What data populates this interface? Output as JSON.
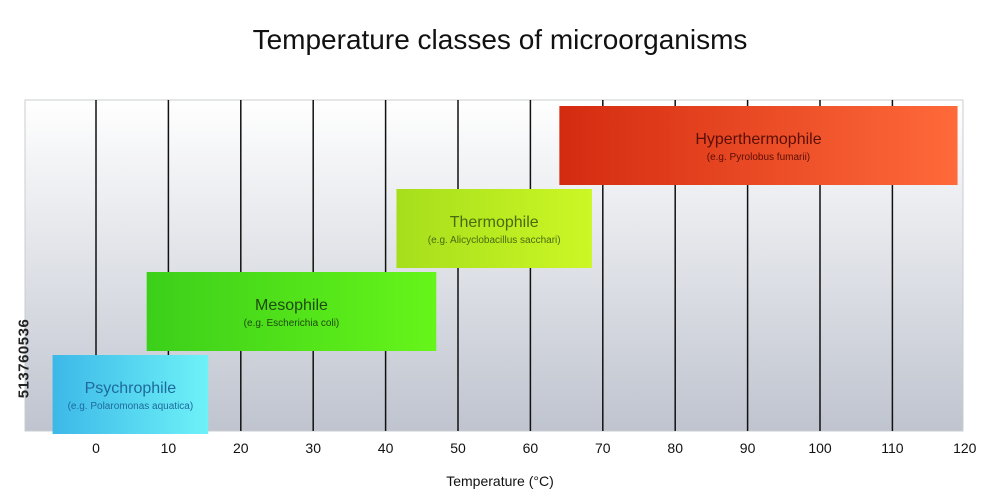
{
  "chart_data": {
    "type": "range-bar",
    "title": "Temperature classes of microorganisms",
    "xlabel": "Temperature (°C)",
    "xlim": [
      -10,
      120
    ],
    "xticks": [
      0,
      10,
      20,
      30,
      40,
      50,
      60,
      70,
      80,
      90,
      100,
      110,
      120
    ],
    "grid": true,
    "bars": [
      {
        "name": "Psychrophile",
        "example": "(e.g. Polaromonas aquatica)",
        "start": -6,
        "end": 15.5,
        "level": 0,
        "color_left": "#3cb8e8",
        "color_right": "#6ef2f8",
        "text_color": "#1e6a9c"
      },
      {
        "name": "Mesophile",
        "example": "(e.g. Escherichia coli)",
        "start": 7,
        "end": 47,
        "level": 1,
        "color_left": "#3ccf1a",
        "color_right": "#66f51a",
        "text_color": "#1d4a10"
      },
      {
        "name": "Thermophile",
        "example": "(e.g. Alicyclobacillus sacchari)",
        "start": 41.5,
        "end": 68.5,
        "level": 2,
        "color_left": "#a6de1c",
        "color_right": "#ccf725",
        "text_color": "#4b6a10"
      },
      {
        "name": "Hyperthermophile",
        "example": "(e.g. Pyrolobus fumarii)",
        "start": 64,
        "end": 119,
        "level": 3,
        "color_left": "#d42b10",
        "color_right": "#ff6a3a",
        "text_color": "#5a0e05"
      }
    ]
  },
  "stock_id": "513760536"
}
